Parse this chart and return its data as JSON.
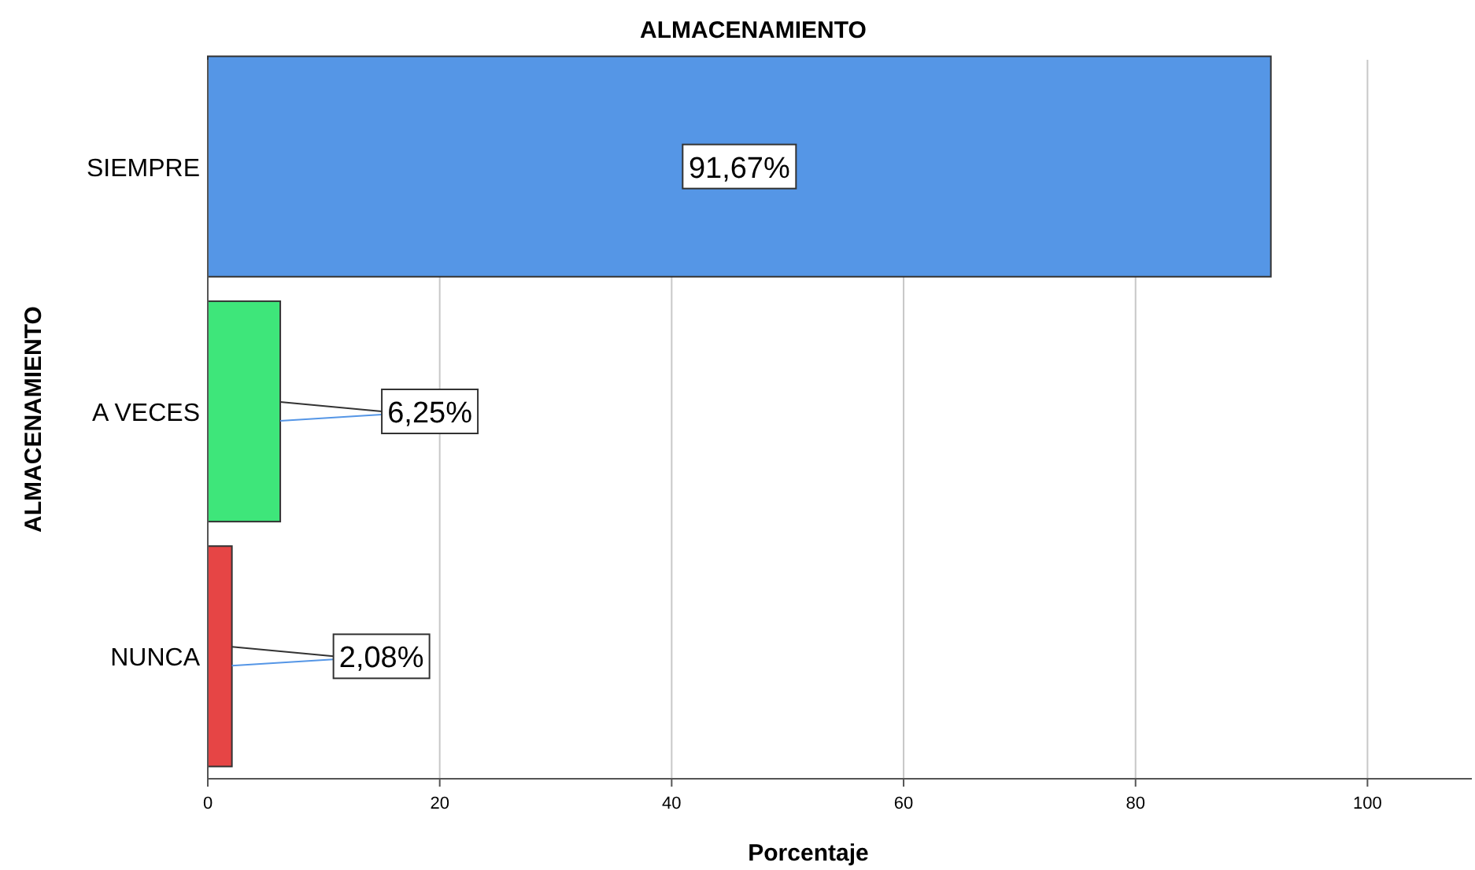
{
  "chart_data": {
    "type": "bar",
    "orientation": "horizontal",
    "title": "ALMACENAMIENTO",
    "xlabel": "Porcentaje",
    "ylabel": "ALMACENAMIENTO",
    "categories": [
      "SIEMPRE",
      "A VECES",
      "NUNCA"
    ],
    "values": [
      91.67,
      6.25,
      2.08
    ],
    "colors": [
      "#5596e6",
      "#3ee67a",
      "#e64545"
    ],
    "value_labels": [
      "91,67%",
      "6,25%",
      "2,08%"
    ],
    "xlim": [
      0,
      109
    ],
    "xticks": [
      0,
      20,
      40,
      60,
      80,
      100
    ],
    "grid": "x"
  }
}
